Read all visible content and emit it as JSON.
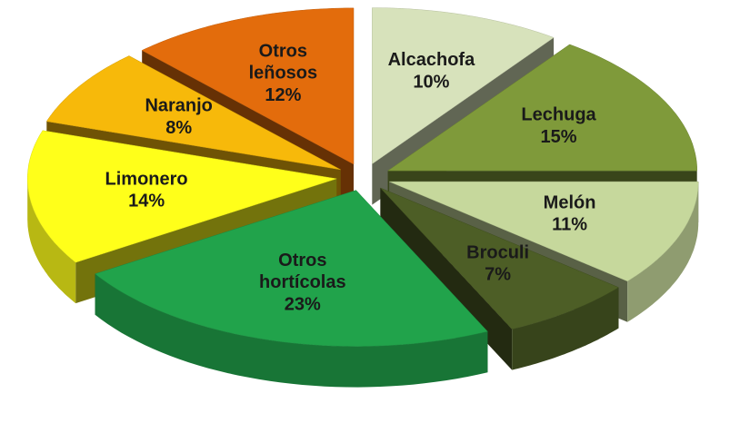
{
  "chart_data": {
    "type": "pie",
    "categories": [
      "Alcachofa",
      "Lechuga",
      "Melón",
      "Broculi",
      "Otros hortícolas",
      "Limonero",
      "Naranjo",
      "Otros leñosos"
    ],
    "values": [
      10,
      15,
      11,
      7,
      23,
      14,
      8,
      12
    ],
    "value_labels": [
      "10%",
      "15%",
      "11%",
      "7%",
      "23%",
      "14%",
      "8%",
      "12%"
    ],
    "colors": [
      "#d7e2bb",
      "#7f9a3a",
      "#c6d89c",
      "#4d5e26",
      "#21a34b",
      "#ffff1a",
      "#f7b90a",
      "#e36c0c"
    ]
  }
}
